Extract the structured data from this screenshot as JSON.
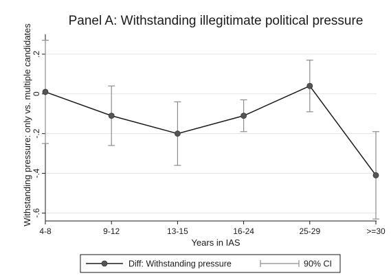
{
  "chart_data": {
    "type": "line",
    "title": "Panel A: Withstanding illegitimate political pressure",
    "xlabel": "Years in IAS",
    "ylabel": "Withstanding pressure: only vs. multiple candidates",
    "categories": [
      "4-8",
      "9-12",
      "13-15",
      "16-24",
      "25-29",
      ">=30"
    ],
    "y_ticks": [
      -0.6,
      -0.4,
      -0.2,
      0,
      0.2
    ],
    "y_tick_labels": [
      "-.6",
      "-.4",
      "-.2",
      "0",
      ".2"
    ],
    "ylim": [
      -0.64,
      0.3
    ],
    "grid": true,
    "legend_position": "bottom",
    "series": [
      {
        "name": "Diff: Withstanding pressure",
        "values": [
          0.01,
          -0.11,
          -0.2,
          -0.11,
          0.04,
          -0.41
        ],
        "color": "#1a1a1a"
      }
    ],
    "error_bars": {
      "name": "90% CI",
      "color": "#8c8c8c",
      "lower": [
        -0.25,
        -0.26,
        -0.36,
        -0.19,
        -0.09,
        -0.63
      ],
      "upper": [
        0.27,
        0.04,
        -0.04,
        -0.03,
        0.17,
        -0.19
      ]
    }
  }
}
